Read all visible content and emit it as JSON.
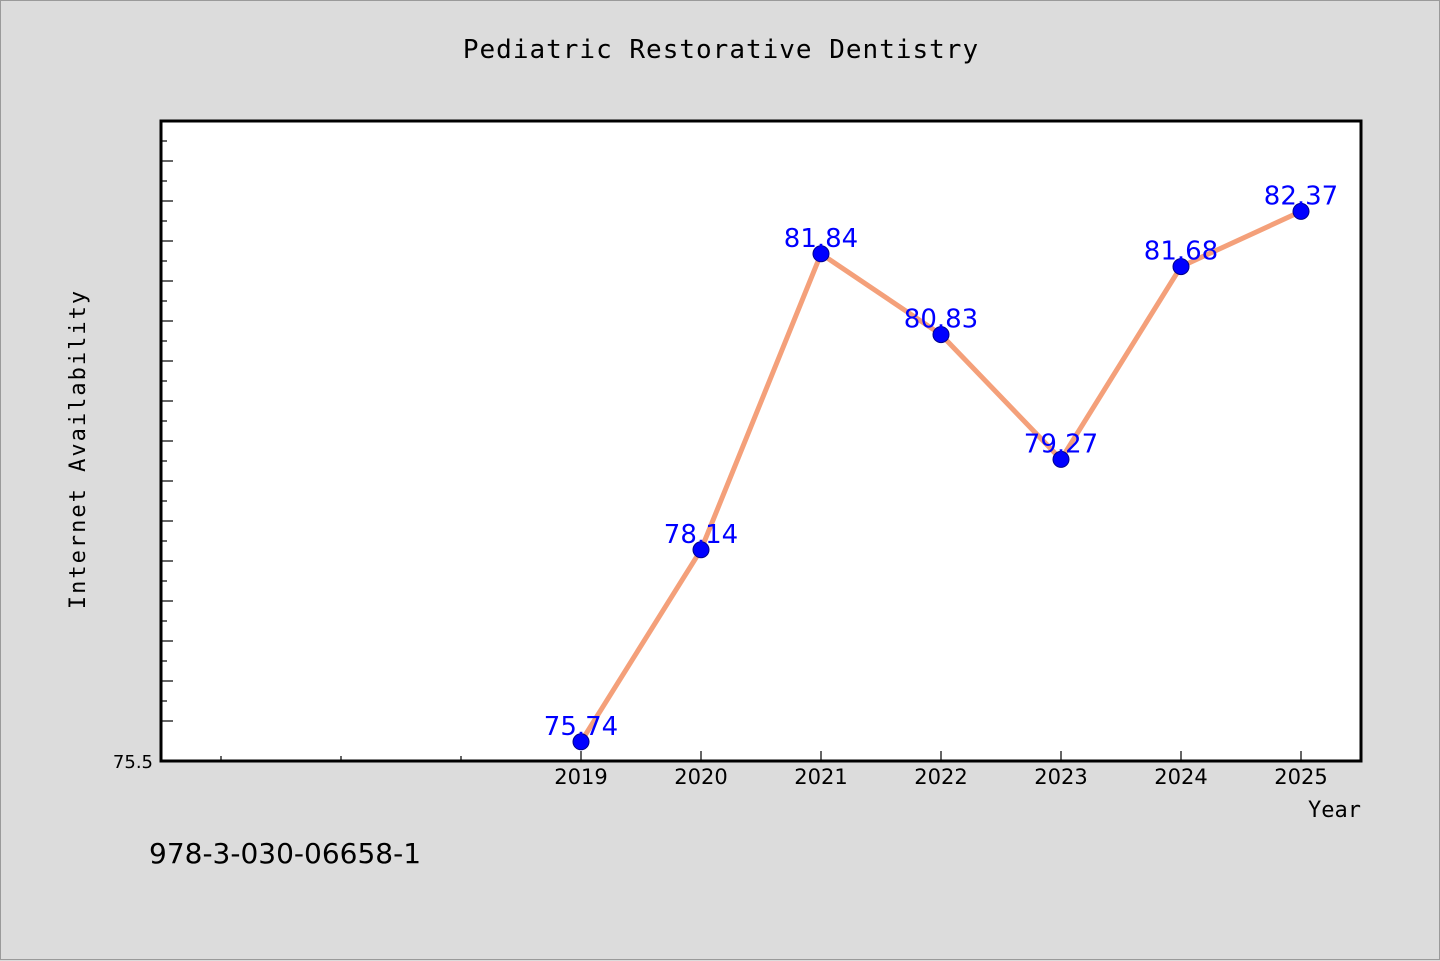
{
  "chart_data": {
    "type": "line",
    "title": "Pediatric Restorative Dentistry",
    "xlabel": "Year",
    "ylabel": "Internet Availability",
    "x": [
      "2019",
      "2020",
      "2021",
      "2022",
      "2023",
      "2024",
      "2025"
    ],
    "values": [
      75.74,
      78.14,
      81.84,
      80.83,
      79.27,
      81.68,
      82.37
    ],
    "data_labels": [
      "75.74",
      "78.14",
      "81.84",
      "80.83",
      "79.27",
      "81.68",
      "82.37"
    ],
    "ytick_labels": [
      "75.5"
    ],
    "ylim": [
      75.5,
      83.5
    ],
    "grid": false,
    "colors": {
      "line": "#f4a07a",
      "marker": "#0000ff",
      "label": "#0000ff",
      "plot_bg": "#ffffff",
      "figure_bg": "#dcdcdc"
    }
  },
  "footer": {
    "isbn": "978-3-030-06658-1"
  }
}
